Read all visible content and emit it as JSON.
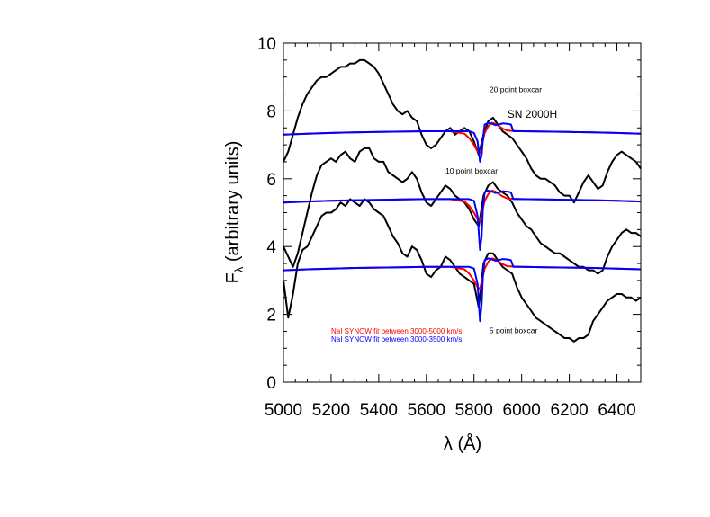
{
  "chart_data": {
    "type": "line",
    "xlabel": "λ (Å)",
    "ylabel": "F",
    "ylabel_sub": "λ",
    "ylabel_rest": " (arbitrary units)",
    "xlim": [
      5000,
      6500
    ],
    "ylim": [
      0,
      10
    ],
    "x_ticks": [
      5000,
      5200,
      5400,
      5600,
      5800,
      6000,
      6200,
      6400
    ],
    "y_ticks": [
      0,
      2,
      4,
      6,
      8,
      10
    ],
    "x_tick_labels": [
      "5000",
      "5200",
      "5400",
      "5600",
      "5800",
      "6000",
      "6200",
      "6400"
    ],
    "y_tick_labels": [
      "0",
      "2",
      "4",
      "6",
      "8",
      "10"
    ],
    "grid": false,
    "annotations": [
      {
        "text": "20 point boxcar",
        "x": 5865,
        "y": 8.55
      },
      {
        "text": "SN 2000H",
        "x": 5940,
        "y": 7.8
      },
      {
        "text": "10 point boxcar",
        "x": 5680,
        "y": 6.15
      },
      {
        "text": "5 point boxcar",
        "x": 5865,
        "y": 1.45
      }
    ],
    "legend": [
      {
        "text": "NaI SYNOW fit between 3000-5000 km/s",
        "color": "#ff0000"
      },
      {
        "text": "NaI SYNOW fit between 3000-3500 km/s",
        "color": "#0000ff"
      }
    ],
    "legend_position": "lower-left",
    "series": [
      {
        "color": "#000000",
        "x": [
          5000,
          5020,
          5040,
          5060,
          5080,
          5100,
          5120,
          5140,
          5160,
          5180,
          5200,
          5220,
          5240,
          5260,
          5280,
          5300,
          5320,
          5340,
          5360,
          5380,
          5400,
          5420,
          5440,
          5460,
          5480,
          5500,
          5520,
          5540,
          5560,
          5580,
          5600,
          5620,
          5640,
          5660,
          5680,
          5700,
          5720,
          5740,
          5760,
          5780,
          5800,
          5820,
          5840,
          5860,
          5880,
          5900,
          5920,
          5940,
          5960,
          5980,
          6000,
          6020,
          6040,
          6060,
          6080,
          6100,
          6120,
          6140,
          6160,
          6180,
          6200,
          6220,
          6240,
          6260,
          6280,
          6300,
          6320,
          6340,
          6360,
          6380,
          6400,
          6420,
          6440,
          6460,
          6480,
          6500
        ],
        "y": [
          6.5,
          6.8,
          7.3,
          7.8,
          8.2,
          8.5,
          8.7,
          8.9,
          9.0,
          9.0,
          9.1,
          9.2,
          9.3,
          9.3,
          9.4,
          9.4,
          9.5,
          9.5,
          9.4,
          9.3,
          9.1,
          8.8,
          8.5,
          8.2,
          8.0,
          7.9,
          8.0,
          7.8,
          7.7,
          7.3,
          7.0,
          6.9,
          7.0,
          7.2,
          7.4,
          7.5,
          7.3,
          7.4,
          7.5,
          7.4,
          7.1,
          6.7,
          7.3,
          7.7,
          7.8,
          7.6,
          7.4,
          7.3,
          7.2,
          7.0,
          6.8,
          6.6,
          6.3,
          6.1,
          6.0,
          6.0,
          5.9,
          5.8,
          5.6,
          5.5,
          5.5,
          5.3,
          5.6,
          5.9,
          6.1,
          5.9,
          5.7,
          5.8,
          6.2,
          6.5,
          6.7,
          6.8,
          6.7,
          6.6,
          6.5,
          6.3
        ]
      },
      {
        "color": "#000000",
        "x": [
          5000,
          5020,
          5040,
          5060,
          5080,
          5100,
          5120,
          5140,
          5160,
          5180,
          5200,
          5220,
          5240,
          5260,
          5280,
          5300,
          5320,
          5340,
          5360,
          5380,
          5400,
          5420,
          5440,
          5460,
          5480,
          5500,
          5520,
          5540,
          5560,
          5580,
          5600,
          5620,
          5640,
          5660,
          5680,
          5700,
          5720,
          5740,
          5760,
          5780,
          5800,
          5820,
          5840,
          5860,
          5880,
          5900,
          5920,
          5940,
          5960,
          5980,
          6000,
          6020,
          6040,
          6060,
          6080,
          6100,
          6120,
          6140,
          6160,
          6180,
          6200,
          6220,
          6240,
          6260,
          6280,
          6300,
          6320,
          6340,
          6360,
          6380,
          6400,
          6420,
          6440,
          6460,
          6480,
          6500
        ],
        "y": [
          4.0,
          3.7,
          3.4,
          3.8,
          4.4,
          5.0,
          5.6,
          6.1,
          6.4,
          6.5,
          6.6,
          6.5,
          6.7,
          6.8,
          6.6,
          6.5,
          6.8,
          6.9,
          6.9,
          6.6,
          6.5,
          6.5,
          6.2,
          6.1,
          6.0,
          5.9,
          6.0,
          6.2,
          6.0,
          5.6,
          5.3,
          5.2,
          5.4,
          5.6,
          5.8,
          5.7,
          5.5,
          5.4,
          5.3,
          5.1,
          4.8,
          4.6,
          5.5,
          5.8,
          5.9,
          5.7,
          5.6,
          5.5,
          5.3,
          5.0,
          4.8,
          4.6,
          4.5,
          4.3,
          4.1,
          4.0,
          3.9,
          3.8,
          3.8,
          3.7,
          3.6,
          3.5,
          3.4,
          3.4,
          3.3,
          3.3,
          3.2,
          3.3,
          3.7,
          4.0,
          4.2,
          4.4,
          4.5,
          4.4,
          4.4,
          4.3
        ]
      },
      {
        "color": "#000000",
        "x": [
          5000,
          5020,
          5040,
          5060,
          5080,
          5100,
          5120,
          5140,
          5160,
          5180,
          5200,
          5220,
          5240,
          5260,
          5280,
          5300,
          5320,
          5340,
          5360,
          5380,
          5400,
          5420,
          5440,
          5460,
          5480,
          5500,
          5520,
          5540,
          5560,
          5580,
          5600,
          5620,
          5640,
          5660,
          5680,
          5700,
          5720,
          5740,
          5760,
          5780,
          5800,
          5820,
          5840,
          5860,
          5880,
          5900,
          5920,
          5940,
          5960,
          5980,
          6000,
          6020,
          6040,
          6060,
          6080,
          6100,
          6120,
          6140,
          6160,
          6180,
          6200,
          6220,
          6240,
          6260,
          6280,
          6300,
          6320,
          6340,
          6360,
          6380,
          6400,
          6420,
          6440,
          6460,
          6480,
          6500
        ],
        "y": [
          3.0,
          1.9,
          2.6,
          3.5,
          3.9,
          4.0,
          4.3,
          4.6,
          4.9,
          5.0,
          5.0,
          5.1,
          5.3,
          5.2,
          5.4,
          5.3,
          5.2,
          5.4,
          5.3,
          5.1,
          5.0,
          4.9,
          4.6,
          4.3,
          4.1,
          3.8,
          3.7,
          4.0,
          3.9,
          3.6,
          3.2,
          3.1,
          3.3,
          3.4,
          3.7,
          3.6,
          3.4,
          3.2,
          3.1,
          3.0,
          2.9,
          2.2,
          3.5,
          3.8,
          3.8,
          3.6,
          3.4,
          3.3,
          3.2,
          2.8,
          2.5,
          2.3,
          2.1,
          1.9,
          1.8,
          1.7,
          1.6,
          1.5,
          1.4,
          1.3,
          1.3,
          1.2,
          1.3,
          1.3,
          1.4,
          1.8,
          2.0,
          2.2,
          2.4,
          2.5,
          2.6,
          2.6,
          2.5,
          2.5,
          2.4,
          2.5
        ]
      },
      {
        "color": "#ff0000",
        "x": [
          5000,
          5100,
          5200,
          5300,
          5400,
          5500,
          5600,
          5700,
          5760,
          5780,
          5800,
          5815,
          5825,
          5835,
          5845,
          5860,
          5875,
          5890,
          5905,
          5920,
          5940,
          5960,
          6000,
          6100,
          6200,
          6300,
          6400,
          6500
        ],
        "y": [
          7.3,
          7.33,
          7.35,
          7.37,
          7.38,
          7.39,
          7.4,
          7.4,
          7.33,
          7.2,
          7.0,
          6.8,
          6.75,
          7.05,
          7.35,
          7.55,
          7.65,
          7.62,
          7.55,
          7.48,
          7.42,
          7.41,
          7.4,
          7.39,
          7.38,
          7.37,
          7.35,
          7.33
        ]
      },
      {
        "color": "#0000ff",
        "x": [
          5000,
          5100,
          5200,
          5300,
          5400,
          5500,
          5600,
          5700,
          5780,
          5800,
          5815,
          5825,
          5832,
          5838,
          5845,
          5860,
          5875,
          5890,
          5905,
          5920,
          5940,
          5955,
          5965,
          6000,
          6100,
          6200,
          6300,
          6400,
          6500
        ],
        "y": [
          7.3,
          7.33,
          7.35,
          7.37,
          7.38,
          7.39,
          7.4,
          7.4,
          7.4,
          7.35,
          7.1,
          6.5,
          6.7,
          7.2,
          7.6,
          7.65,
          7.62,
          7.58,
          7.6,
          7.63,
          7.62,
          7.6,
          7.4,
          7.4,
          7.39,
          7.38,
          7.37,
          7.35,
          7.33
        ]
      },
      {
        "color": "#ff0000",
        "x": [
          5000,
          5100,
          5200,
          5300,
          5400,
          5500,
          5600,
          5700,
          5760,
          5780,
          5800,
          5815,
          5825,
          5835,
          5845,
          5860,
          5875,
          5890,
          5905,
          5920,
          5940,
          5960,
          6000,
          6100,
          6200,
          6300,
          6400,
          6500
        ],
        "y": [
          5.3,
          5.33,
          5.35,
          5.37,
          5.38,
          5.39,
          5.4,
          5.4,
          5.33,
          5.2,
          5.0,
          4.8,
          4.75,
          5.05,
          5.35,
          5.55,
          5.65,
          5.62,
          5.55,
          5.48,
          5.42,
          5.41,
          5.4,
          5.39,
          5.38,
          5.37,
          5.35,
          5.33
        ]
      },
      {
        "color": "#0000ff",
        "x": [
          5000,
          5100,
          5200,
          5300,
          5400,
          5500,
          5600,
          5700,
          5780,
          5800,
          5815,
          5825,
          5832,
          5838,
          5845,
          5860,
          5875,
          5890,
          5905,
          5920,
          5940,
          5955,
          5965,
          6000,
          6100,
          6200,
          6300,
          6400,
          6500
        ],
        "y": [
          5.3,
          5.33,
          5.35,
          5.37,
          5.38,
          5.39,
          5.4,
          5.4,
          5.4,
          5.35,
          4.9,
          3.9,
          4.3,
          5.2,
          5.6,
          5.65,
          5.62,
          5.58,
          5.6,
          5.63,
          5.62,
          5.6,
          5.4,
          5.4,
          5.39,
          5.38,
          5.37,
          5.35,
          5.33
        ]
      },
      {
        "color": "#ff0000",
        "x": [
          5000,
          5100,
          5200,
          5300,
          5400,
          5500,
          5600,
          5700,
          5760,
          5780,
          5800,
          5815,
          5825,
          5835,
          5845,
          5860,
          5875,
          5890,
          5905,
          5920,
          5940,
          5960,
          6000,
          6100,
          6200,
          6300,
          6400,
          6500
        ],
        "y": [
          3.3,
          3.33,
          3.35,
          3.37,
          3.38,
          3.39,
          3.4,
          3.4,
          3.33,
          3.2,
          3.0,
          2.8,
          2.75,
          3.05,
          3.35,
          3.55,
          3.65,
          3.62,
          3.55,
          3.48,
          3.42,
          3.41,
          3.4,
          3.39,
          3.38,
          3.37,
          3.35,
          3.33
        ]
      },
      {
        "color": "#0000ff",
        "x": [
          5000,
          5100,
          5200,
          5300,
          5400,
          5500,
          5600,
          5700,
          5780,
          5800,
          5815,
          5825,
          5832,
          5838,
          5845,
          5860,
          5875,
          5890,
          5905,
          5920,
          5940,
          5955,
          5965,
          6000,
          6100,
          6200,
          6300,
          6400,
          6500
        ],
        "y": [
          3.3,
          3.33,
          3.35,
          3.37,
          3.38,
          3.39,
          3.4,
          3.4,
          3.4,
          3.35,
          2.9,
          1.8,
          2.3,
          3.2,
          3.6,
          3.65,
          3.62,
          3.58,
          3.6,
          3.63,
          3.62,
          3.6,
          3.4,
          3.4,
          3.39,
          3.38,
          3.37,
          3.35,
          3.33
        ]
      }
    ]
  }
}
